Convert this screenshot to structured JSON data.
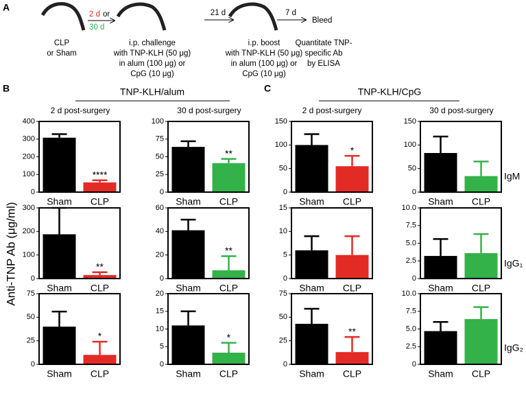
{
  "panel_a": {
    "label": "A",
    "start": [
      "CLP",
      "or Sham"
    ],
    "delay_1": [
      "2 d",
      "or",
      "30 d"
    ],
    "challenge": [
      "i.p. challenge",
      "with TNP-KLH (50 μg)",
      "in alum (100 μg) or",
      "CpG (10 μg)"
    ],
    "delay_2": "21 d",
    "boost": [
      "i.p. boost",
      "with TNP-KLH (50 μg)",
      "in alum (100 μg) or",
      "CpG (10 μg)"
    ],
    "delay_3": "7 d",
    "bleed": "Bleed",
    "assay": [
      "Quantitate TNP-",
      "specific Ab",
      "by ELISA"
    ]
  },
  "panel_b": {
    "label": "B",
    "title": "TNP-KLH/alum",
    "subtitles": [
      "2 d post-surgery",
      "30 d post-surgery"
    ]
  },
  "panel_c": {
    "label": "C",
    "title": "TNP-KLH/CpG",
    "subtitles": [
      "2 d post-surgery",
      "30 d post-surgery"
    ]
  },
  "y_axis_label": "Anti-TNP Ab (μg/ml)",
  "row_labels": [
    "IgM",
    "IgG₁",
    "IgG₂"
  ],
  "chart_data": [
    {
      "type": "bar",
      "categories": [
        "Sham",
        "CLP"
      ],
      "values": [
        308,
        55
      ],
      "errors": [
        20,
        12
      ],
      "colors": [
        "#000000",
        "#e32b26"
      ],
      "ylim": [
        0,
        400
      ],
      "yticks": [
        0,
        100,
        200,
        300,
        400
      ],
      "annotation": "****"
    },
    {
      "type": "bar",
      "categories": [
        "Sham",
        "CLP"
      ],
      "values": [
        64,
        41
      ],
      "errors": [
        8,
        6
      ],
      "colors": [
        "#000000",
        "#33b24a"
      ],
      "ylim": [
        0,
        100
      ],
      "yticks": [
        0,
        25,
        50,
        75,
        100
      ],
      "annotation": "**"
    },
    {
      "type": "bar",
      "categories": [
        "Sham",
        "CLP"
      ],
      "values": [
        100,
        55
      ],
      "errors": [
        23,
        22
      ],
      "colors": [
        "#000000",
        "#e32b26"
      ],
      "ylim": [
        0,
        150
      ],
      "yticks": [
        0,
        50,
        100,
        150
      ],
      "annotation": "*"
    },
    {
      "type": "bar",
      "categories": [
        "Sham",
        "CLP"
      ],
      "values": [
        83,
        34
      ],
      "errors": [
        35,
        31
      ],
      "colors": [
        "#000000",
        "#33b24a"
      ],
      "ylim": [
        0,
        150
      ],
      "yticks": [
        0,
        50,
        100,
        150
      ]
    },
    {
      "type": "bar",
      "categories": [
        "Sham",
        "CLP"
      ],
      "values": [
        188,
        15
      ],
      "errors": [
        112,
        12
      ],
      "colors": [
        "#000000",
        "#e32b26"
      ],
      "ylim": [
        0,
        300
      ],
      "yticks": [
        0,
        100,
        200,
        300
      ],
      "annotation": "**"
    },
    {
      "type": "bar",
      "categories": [
        "Sham",
        "CLP"
      ],
      "values": [
        41,
        7
      ],
      "errors": [
        9,
        12
      ],
      "colors": [
        "#000000",
        "#33b24a"
      ],
      "ylim": [
        0,
        60
      ],
      "yticks": [
        0,
        20,
        40,
        60
      ],
      "annotation": "**"
    },
    {
      "type": "bar",
      "categories": [
        "Sham",
        "CLP"
      ],
      "values": [
        6,
        5
      ],
      "errors": [
        3,
        4
      ],
      "colors": [
        "#000000",
        "#e32b26"
      ],
      "ylim": [
        0,
        15
      ],
      "yticks": [
        0,
        5,
        10,
        15
      ]
    },
    {
      "type": "bar",
      "categories": [
        "Sham",
        "CLP"
      ],
      "values": [
        3.2,
        3.6
      ],
      "errors": [
        2.4,
        2.7
      ],
      "colors": [
        "#000000",
        "#33b24a"
      ],
      "ylim": [
        0,
        10
      ],
      "yticks": [
        0,
        2.5,
        {
          "value": 5,
          "label": "5.0"
        },
        7.5,
        {
          "value": 10,
          "label": "10.0"
        }
      ]
    },
    {
      "type": "bar",
      "categories": [
        "Sham",
        "CLP"
      ],
      "values": [
        40,
        10
      ],
      "errors": [
        16,
        14
      ],
      "colors": [
        "#000000",
        "#e32b26"
      ],
      "ylim": [
        0,
        75
      ],
      "yticks": [
        0,
        25,
        50,
        75
      ],
      "annotation": "*"
    },
    {
      "type": "bar",
      "categories": [
        "Sham",
        "CLP"
      ],
      "values": [
        11,
        3.3
      ],
      "errors": [
        4,
        2.8
      ],
      "colors": [
        "#000000",
        "#33b24a"
      ],
      "ylim": [
        0,
        20
      ],
      "yticks": [
        0,
        5,
        10,
        15,
        20
      ],
      "annotation": "*"
    },
    {
      "type": "bar",
      "categories": [
        "Sham",
        "CLP"
      ],
      "values": [
        43,
        13
      ],
      "errors": [
        16,
        16
      ],
      "colors": [
        "#000000",
        "#e32b26"
      ],
      "ylim": [
        0,
        75
      ],
      "yticks": [
        0,
        25,
        50,
        75
      ],
      "annotation": "**"
    },
    {
      "type": "bar",
      "categories": [
        "Sham",
        "CLP"
      ],
      "values": [
        4.7,
        6.4
      ],
      "errors": [
        1.3,
        1.7
      ],
      "colors": [
        "#000000",
        "#33b24a"
      ],
      "ylim": [
        0,
        10
      ],
      "yticks": [
        0,
        2.5,
        {
          "value": 5,
          "label": "5.0"
        },
        7.5,
        {
          "value": 10,
          "label": "10.0"
        }
      ]
    }
  ]
}
